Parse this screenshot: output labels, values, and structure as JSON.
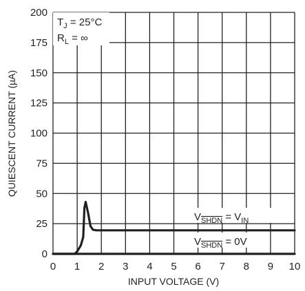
{
  "chart_data": {
    "type": "line",
    "xlabel": "INPUT VOLTAGE (V)",
    "ylabel": "QUIESCENT CURRENT (µA)",
    "xlim": [
      0,
      10
    ],
    "ylim": [
      0,
      200
    ],
    "x_ticks": [
      "0",
      "1",
      "2",
      "3",
      "4",
      "5",
      "6",
      "7",
      "8",
      "9",
      "10"
    ],
    "y_ticks": [
      "0",
      "25",
      "50",
      "75",
      "100",
      "125",
      "150",
      "175",
      "200"
    ],
    "grid": true,
    "conditions": {
      "tj_main": "T",
      "tj_sub": "J",
      "tj_value": " = 25°C",
      "rl_main": "R",
      "rl_sub": "L",
      "rl_value": " = ∞"
    },
    "series": [
      {
        "label_parts": {
          "v": "V",
          "shdn": "SHDN",
          "eq": " = V",
          "in": "IN"
        },
        "x": [
          0,
          0.9,
          1.0,
          1.15,
          1.25,
          1.3,
          1.35,
          1.45,
          1.55,
          1.65,
          1.8,
          2.0,
          4.0,
          6.0,
          8.0,
          10.0
        ],
        "y": [
          0,
          0,
          2,
          7,
          14,
          38,
          43,
          34,
          23,
          20,
          19.5,
          19.5,
          19.5,
          19.5,
          19.5,
          19.5
        ]
      },
      {
        "label_parts": {
          "v": "V",
          "shdn": "SHDN",
          "eq": " = 0V"
        },
        "x": [
          0,
          2,
          4,
          6,
          8,
          10
        ],
        "y": [
          0,
          0,
          0,
          0,
          0,
          0
        ]
      }
    ]
  }
}
